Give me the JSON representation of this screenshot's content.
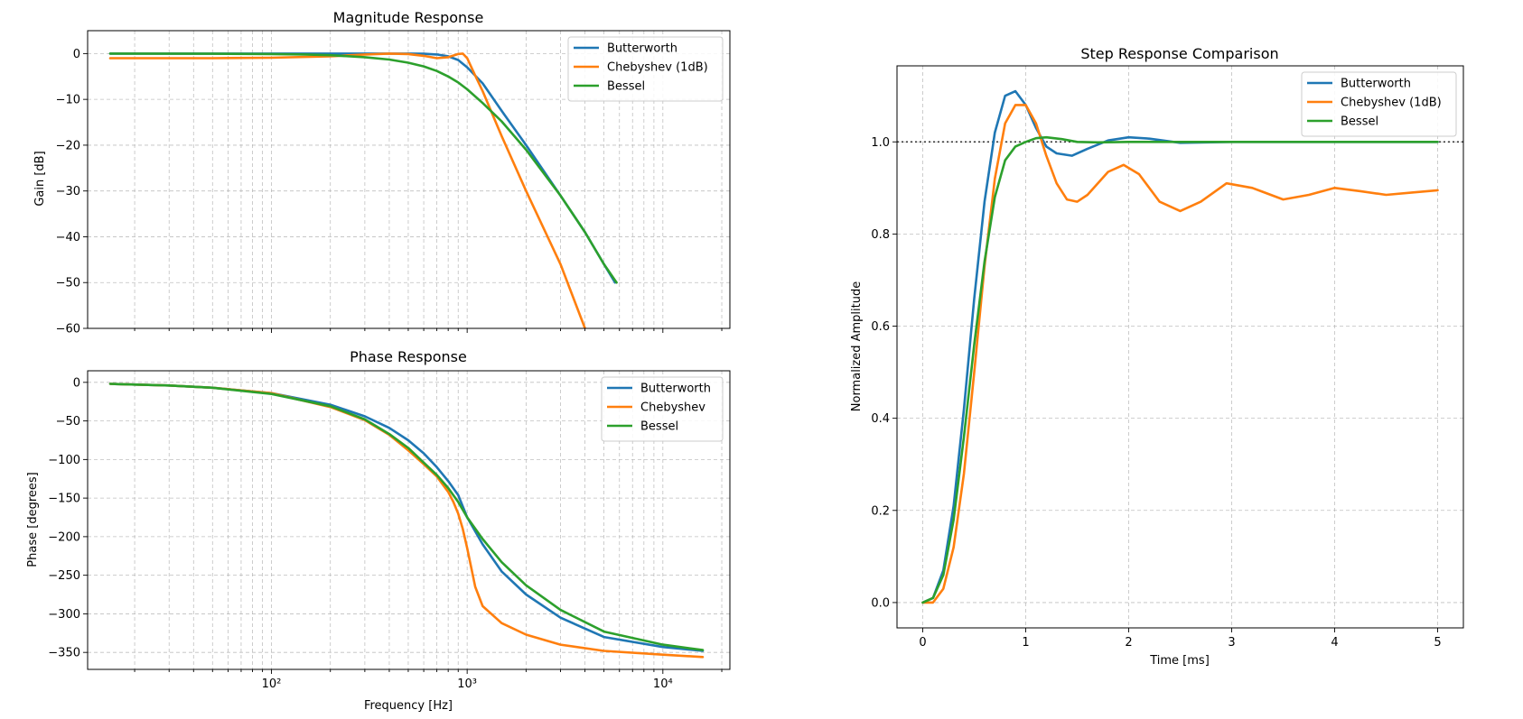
{
  "colors": {
    "butterworth": "#1f77b4",
    "chebyshev": "#ff7f0e",
    "bessel": "#2ca02c"
  },
  "chart_data": [
    {
      "id": "magnitude",
      "type": "line",
      "title": "Magnitude Response",
      "xlabel": "",
      "ylabel": "Gain [dB]",
      "xscale": "log",
      "xlim": [
        11.5,
        22000
      ],
      "ylim": [
        -60,
        5
      ],
      "yticks": [
        0,
        -10,
        -20,
        -30,
        -40,
        -50,
        -60
      ],
      "ytick_labels": [
        "0",
        "−10",
        "−20",
        "−30",
        "−40",
        "−50",
        "−60"
      ],
      "xticks": [],
      "xtick_labels": [],
      "grid": true,
      "legend": "upper right",
      "series": [
        {
          "name": "Butterworth",
          "color": "#1f77b4",
          "x": [
            15,
            50,
            100,
            200,
            300,
            400,
            500,
            600,
            700,
            800,
            900,
            1000,
            1200,
            1500,
            2000,
            3000,
            4000,
            5000,
            5700
          ],
          "y": [
            0,
            0,
            0,
            0,
            0,
            0,
            0,
            -0.05,
            -0.2,
            -0.6,
            -1.4,
            -3,
            -6.5,
            -12.5,
            -20,
            -31,
            -39,
            -46,
            -50
          ]
        },
        {
          "name": "Chebyshev (1dB)",
          "color": "#ff7f0e",
          "x": [
            15,
            50,
            100,
            200,
            300,
            400,
            500,
            600,
            700,
            800,
            900,
            950,
            1000,
            1100,
            1200,
            1500,
            2000,
            3000,
            4000
          ],
          "y": [
            -1,
            -1,
            -0.9,
            -0.6,
            -0.2,
            0,
            -0.1,
            -0.5,
            -1,
            -0.8,
            -0.1,
            0,
            -1,
            -4.8,
            -8.2,
            -18,
            -30,
            -46,
            -60
          ]
        },
        {
          "name": "Bessel",
          "color": "#2ca02c",
          "x": [
            15,
            50,
            100,
            150,
            200,
            300,
            400,
            500,
            600,
            700,
            800,
            900,
            1000,
            1200,
            1500,
            2000,
            3000,
            4000,
            5000,
            5800
          ],
          "y": [
            0,
            -0.05,
            -0.1,
            -0.2,
            -0.35,
            -0.8,
            -1.3,
            -2,
            -2.8,
            -3.8,
            -5,
            -6.3,
            -7.8,
            -10.8,
            -14.8,
            -21,
            -31,
            -39,
            -46,
            -50
          ]
        }
      ]
    },
    {
      "id": "phase",
      "type": "line",
      "title": "Phase Response",
      "xlabel": "Frequency [Hz]",
      "ylabel": "Phase [degrees]",
      "xscale": "log",
      "xlim": [
        11.5,
        22000
      ],
      "ylim": [
        -372,
        15
      ],
      "yticks": [
        0,
        -50,
        -100,
        -150,
        -200,
        -250,
        -300,
        -350
      ],
      "ytick_labels": [
        "0",
        "−50",
        "−100",
        "−150",
        "−200",
        "−250",
        "−300",
        "−350"
      ],
      "xticks": [
        100,
        1000,
        10000
      ],
      "xtick_labels": [
        "10²",
        "10³",
        "10⁴"
      ],
      "grid": true,
      "legend": "upper right",
      "series": [
        {
          "name": "Butterworth",
          "color": "#1f77b4",
          "x": [
            15,
            30,
            50,
            100,
            200,
            300,
            400,
            500,
            600,
            700,
            800,
            900,
            1000,
            1200,
            1500,
            2000,
            3000,
            5000,
            10000,
            16000
          ],
          "y": [
            -2,
            -4,
            -7,
            -14,
            -29,
            -44,
            -59,
            -75,
            -92,
            -110,
            -128,
            -146,
            -175,
            -210,
            -245,
            -275,
            -305,
            -330,
            -343,
            -348
          ]
        },
        {
          "name": "Chebyshev",
          "color": "#ff7f0e",
          "x": [
            15,
            30,
            50,
            100,
            200,
            300,
            400,
            500,
            600,
            700,
            800,
            850,
            900,
            950,
            1000,
            1100,
            1200,
            1500,
            2000,
            3000,
            5000,
            10000,
            16000
          ],
          "y": [
            -2,
            -4,
            -7,
            -14,
            -32,
            -49,
            -68,
            -88,
            -106,
            -122,
            -142,
            -155,
            -170,
            -190,
            -215,
            -265,
            -290,
            -312,
            -327,
            -340,
            -348,
            -353,
            -356
          ]
        },
        {
          "name": "Bessel",
          "color": "#2ca02c",
          "x": [
            15,
            30,
            50,
            100,
            200,
            300,
            400,
            500,
            600,
            700,
            800,
            900,
            1000,
            1200,
            1500,
            2000,
            3000,
            5000,
            10000,
            16000
          ],
          "y": [
            -2,
            -4,
            -7,
            -15,
            -31,
            -48,
            -67,
            -85,
            -104,
            -120,
            -137,
            -155,
            -175,
            -203,
            -233,
            -263,
            -295,
            -323,
            -340,
            -347
          ]
        }
      ]
    },
    {
      "id": "step",
      "type": "line",
      "title": "Step Response Comparison",
      "xlabel": "Time [ms]",
      "ylabel": "Normalized Amplitude",
      "xscale": "linear",
      "xlim": [
        -0.25,
        5.25
      ],
      "ylim": [
        -0.055,
        1.165
      ],
      "yticks": [
        0,
        0.2,
        0.4,
        0.6,
        0.8,
        1.0
      ],
      "ytick_labels": [
        "0.0",
        "0.2",
        "0.4",
        "0.6",
        "0.8",
        "1.0"
      ],
      "xticks": [
        0,
        1,
        2,
        3,
        4,
        5
      ],
      "xtick_labels": [
        "0",
        "1",
        "2",
        "3",
        "4",
        "5"
      ],
      "grid": true,
      "legend": "upper right",
      "reference_line": {
        "y": 1.0,
        "style": "dotted"
      },
      "series": [
        {
          "name": "Butterworth",
          "color": "#1f77b4",
          "x": [
            0,
            0.1,
            0.2,
            0.3,
            0.4,
            0.5,
            0.6,
            0.7,
            0.8,
            0.9,
            1.0,
            1.1,
            1.2,
            1.3,
            1.45,
            1.6,
            1.8,
            2.0,
            2.2,
            2.5,
            3.0,
            4.0,
            5.0
          ],
          "y": [
            0,
            0.01,
            0.07,
            0.21,
            0.42,
            0.66,
            0.87,
            1.02,
            1.1,
            1.11,
            1.08,
            1.03,
            0.99,
            0.975,
            0.97,
            0.985,
            1.003,
            1.01,
            1.007,
            0.998,
            1.0,
            1.0,
            1.0
          ]
        },
        {
          "name": "Chebyshev (1dB)",
          "color": "#ff7f0e",
          "x": [
            0,
            0.1,
            0.2,
            0.3,
            0.4,
            0.5,
            0.6,
            0.7,
            0.8,
            0.9,
            1.0,
            1.1,
            1.2,
            1.3,
            1.4,
            1.5,
            1.6,
            1.8,
            1.95,
            2.1,
            2.3,
            2.5,
            2.7,
            2.95,
            3.2,
            3.5,
            3.75,
            4.0,
            4.25,
            4.5,
            4.75,
            5.0
          ],
          "y": [
            0,
            0,
            0.03,
            0.12,
            0.28,
            0.5,
            0.73,
            0.92,
            1.04,
            1.08,
            1.08,
            1.04,
            0.97,
            0.91,
            0.875,
            0.87,
            0.885,
            0.935,
            0.95,
            0.93,
            0.87,
            0.85,
            0.87,
            0.91,
            0.9,
            0.875,
            0.885,
            0.9,
            0.893,
            0.885,
            0.89,
            0.895
          ]
        },
        {
          "name": "Bessel",
          "color": "#2ca02c",
          "x": [
            0,
            0.1,
            0.2,
            0.3,
            0.4,
            0.5,
            0.6,
            0.7,
            0.8,
            0.9,
            1.0,
            1.1,
            1.2,
            1.35,
            1.5,
            1.7,
            2.0,
            3.0,
            4.0,
            5.0
          ],
          "y": [
            0,
            0.01,
            0.06,
            0.18,
            0.36,
            0.56,
            0.74,
            0.88,
            0.96,
            0.99,
            1.0,
            1.008,
            1.01,
            1.006,
            1.0,
            0.999,
            1.0,
            1.0,
            1.0,
            1.0
          ]
        }
      ]
    }
  ]
}
